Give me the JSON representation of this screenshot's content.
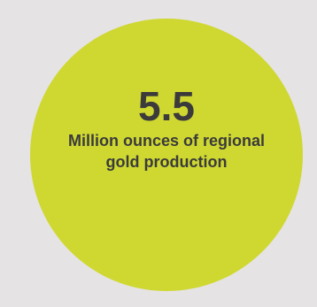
{
  "stat": {
    "value": "5.5",
    "caption": "Million ounces of regional gold production",
    "circle_color": "#cfd831",
    "text_color": "#3b3b3b",
    "background_color": "#e5e3e4"
  }
}
